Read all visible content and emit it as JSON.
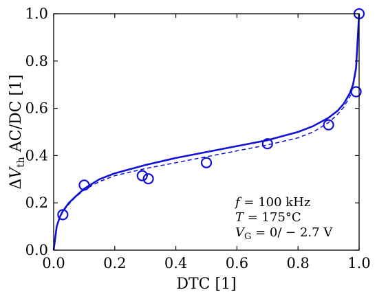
{
  "chart_data": {
    "type": "line",
    "xlabel": "DTC [1]",
    "ylabel": {
      "prefix": "Δ",
      "var": "V",
      "sub": "th",
      "suffix": " AC/DC [1]"
    },
    "xlim": [
      0.0,
      1.0
    ],
    "ylim": [
      0.0,
      1.0
    ],
    "x_ticks": [
      "0.0",
      "0.2",
      "0.4",
      "0.6",
      "0.8",
      "1.0"
    ],
    "y_ticks": [
      "0.0",
      "0.2",
      "0.4",
      "0.6",
      "0.8",
      "1.0"
    ],
    "grid": false,
    "colors": {
      "series": "#1010d8",
      "axes": "#000000"
    },
    "annotation": {
      "line1_var": "f",
      "line1_rest": " = 100 kHz",
      "line2_var": "T",
      "line2_rest": " = 175°C",
      "line3_var": "V",
      "line3_sub": "G",
      "line3_rest": " = 0/ − 2.7 V"
    },
    "series": [
      {
        "style": "solid",
        "x": [
          0.0,
          0.01,
          0.02,
          0.03,
          0.05,
          0.07,
          0.1,
          0.15,
          0.2,
          0.3,
          0.4,
          0.5,
          0.6,
          0.7,
          0.8,
          0.85,
          0.9,
          0.93,
          0.95,
          0.97,
          0.98,
          0.99,
          1.0
        ],
        "y": [
          0.0,
          0.1,
          0.14,
          0.165,
          0.2,
          0.225,
          0.26,
          0.3,
          0.325,
          0.36,
          0.39,
          0.415,
          0.44,
          0.465,
          0.5,
          0.525,
          0.56,
          0.59,
          0.62,
          0.665,
          0.7,
          0.77,
          1.0
        ]
      },
      {
        "style": "dashed",
        "x": [
          0.0,
          0.01,
          0.02,
          0.03,
          0.05,
          0.07,
          0.1,
          0.15,
          0.2,
          0.3,
          0.4,
          0.5,
          0.6,
          0.7,
          0.8,
          0.85,
          0.9,
          0.93,
          0.95,
          0.97,
          0.98,
          0.99,
          1.0
        ],
        "y": [
          0.0,
          0.1,
          0.14,
          0.162,
          0.195,
          0.222,
          0.255,
          0.29,
          0.315,
          0.345,
          0.37,
          0.395,
          0.42,
          0.445,
          0.475,
          0.5,
          0.54,
          0.575,
          0.605,
          0.65,
          0.69,
          0.76,
          1.0
        ]
      },
      {
        "style": "markers",
        "x": [
          0.03,
          0.1,
          0.29,
          0.31,
          0.5,
          0.7,
          0.9,
          0.99,
          1.0
        ],
        "y": [
          0.15,
          0.275,
          0.315,
          0.302,
          0.37,
          0.45,
          0.53,
          0.67,
          1.0
        ]
      }
    ]
  }
}
